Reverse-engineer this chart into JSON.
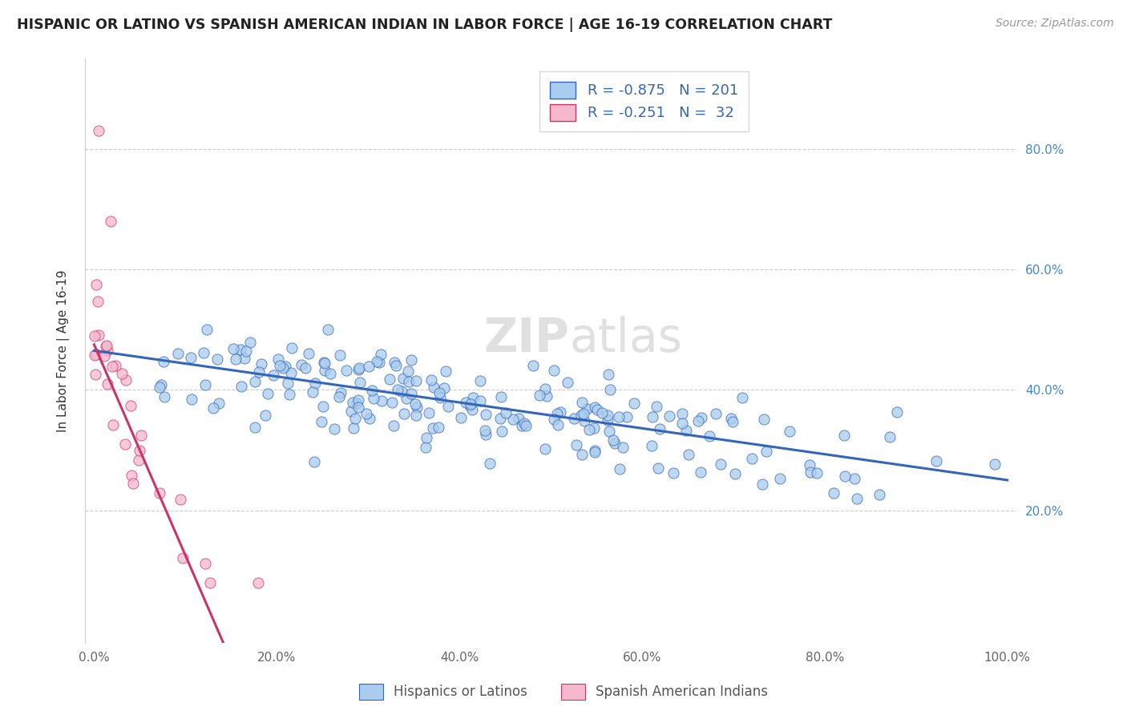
{
  "title": "HISPANIC OR LATINO VS SPANISH AMERICAN INDIAN IN LABOR FORCE | AGE 16-19 CORRELATION CHART",
  "source": "Source: ZipAtlas.com",
  "ylabel": "In Labor Force | Age 16-19",
  "blue_R": -0.875,
  "blue_N": 201,
  "pink_R": -0.251,
  "pink_N": 32,
  "blue_color": "#aaccee",
  "pink_color": "#f5b8cc",
  "blue_line_color": "#3366bb",
  "pink_line_color": "#cc3366",
  "legend_blue_label": "Hispanics or Latinos",
  "legend_pink_label": "Spanish American Indians",
  "watermark_zip": "ZIP",
  "watermark_atlas": "atlas",
  "x_tick_labels": [
    "0.0%",
    "20.0%",
    "40.0%",
    "60.0%",
    "80.0%",
    "100.0%"
  ],
  "y_tick_labels_right": [
    "20.0%",
    "40.0%",
    "60.0%",
    "80.0%"
  ],
  "background_color": "#ffffff",
  "seed": 42
}
